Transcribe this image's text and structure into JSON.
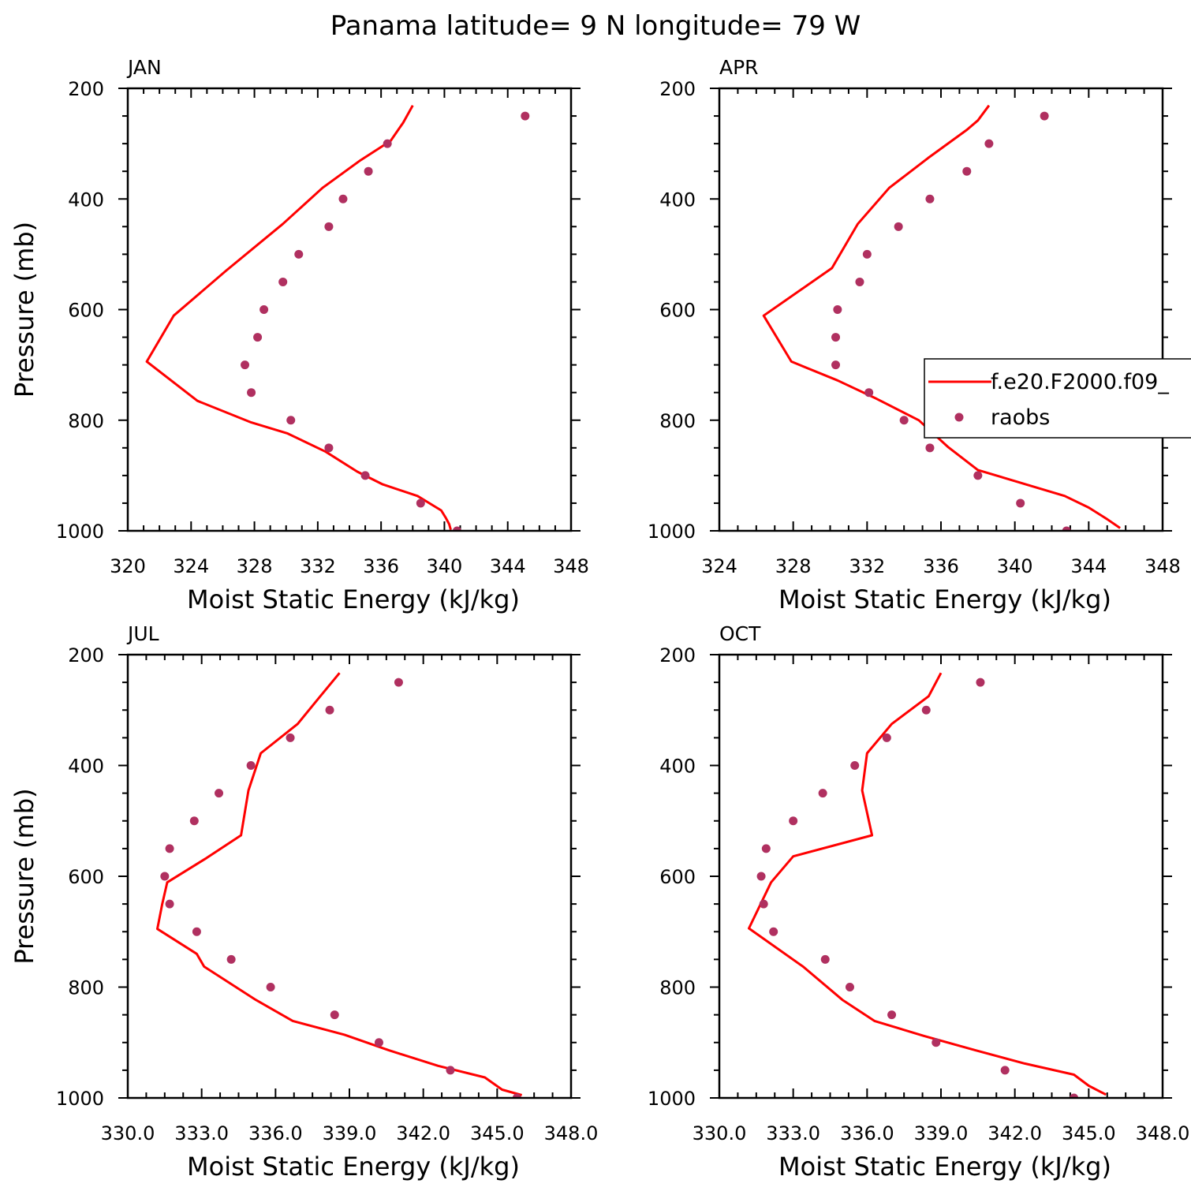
{
  "title": "Panama  latitude= 9 N longitude= 79 W",
  "chart_data": [
    {
      "type": "line",
      "panel_title": "JAN",
      "xlabel": "Moist Static Energy (kJ/kg)",
      "ylabel": "Pressure (mb)",
      "xlim": [
        320,
        348
      ],
      "ylim": [
        1000,
        200
      ],
      "xticks": [
        "320",
        "324",
        "328",
        "332",
        "336",
        "340",
        "344",
        "348"
      ],
      "yticks": [
        "200",
        "400",
        "600",
        "800",
        "1000"
      ],
      "series": [
        {
          "kind": "line",
          "color": "#ff0000",
          "x": [
            338.0,
            337.4,
            336.6,
            334.7,
            332.3,
            329.8,
            326.2,
            322.9,
            321.2,
            324.4,
            327.8,
            330.1,
            332.5,
            334.5,
            336.1,
            338.3,
            339.8,
            340.1,
            340.3,
            340.4
          ],
          "y": [
            231,
            262,
            295,
            330,
            380,
            445,
            530,
            611,
            694,
            765,
            804,
            824,
            857,
            893,
            916,
            937,
            963,
            977,
            988,
            998
          ]
        },
        {
          "kind": "points",
          "color": "#b03060",
          "x": [
            345.1,
            336.4,
            335.2,
            333.6,
            332.7,
            330.8,
            329.8,
            328.6,
            328.2,
            327.4,
            327.8,
            330.3,
            332.7,
            335.0,
            338.5,
            340.8
          ],
          "y": [
            250,
            300,
            350,
            400,
            450,
            500,
            550,
            600,
            650,
            700,
            750,
            800,
            850,
            900,
            950,
            1000
          ]
        }
      ]
    },
    {
      "type": "line",
      "panel_title": "APR",
      "xlabel": "Moist Static Energy (kJ/kg)",
      "ylabel": "",
      "xlim": [
        324,
        348
      ],
      "ylim": [
        1000,
        200
      ],
      "xticks": [
        "324",
        "328",
        "332",
        "336",
        "340",
        "344",
        "348"
      ],
      "yticks": [
        "200",
        "400",
        "600",
        "800",
        "1000"
      ],
      "series": [
        {
          "kind": "line",
          "color": "#ff0000",
          "name": "f.e20.F2000.f09_",
          "x": [
            338.6,
            338.0,
            337.4,
            335.3,
            333.2,
            331.5,
            330.1,
            326.4,
            327.9,
            330.4,
            332.5,
            334.8,
            336.4,
            338.0,
            340.5,
            342.7,
            344.0,
            345.0,
            345.7
          ],
          "y": [
            231,
            258,
            275,
            326,
            380,
            445,
            525,
            611,
            694,
            728,
            761,
            800,
            849,
            890,
            915,
            937,
            958,
            979,
            995
          ]
        },
        {
          "kind": "points",
          "color": "#b03060",
          "name": "raobs",
          "x": [
            341.6,
            338.6,
            337.4,
            335.4,
            333.7,
            332.0,
            331.6,
            330.4,
            330.3,
            330.3,
            332.1,
            334.0,
            335.4,
            338.0,
            340.3,
            342.8
          ],
          "y": [
            250,
            300,
            350,
            400,
            450,
            500,
            550,
            600,
            650,
            700,
            750,
            800,
            850,
            900,
            950,
            1000
          ]
        }
      ]
    },
    {
      "type": "line",
      "panel_title": "JUL",
      "xlabel": "Moist Static Energy (kJ/kg)",
      "ylabel": "Pressure (mb)",
      "xlim": [
        330,
        348
      ],
      "ylim": [
        1000,
        200
      ],
      "xticks": [
        "330.0",
        "333.0",
        "336.0",
        "339.0",
        "342.0",
        "345.0",
        "348.0"
      ],
      "yticks": [
        "200",
        "400",
        "600",
        "800",
        "1000"
      ],
      "series": [
        {
          "kind": "line",
          "color": "#ff0000",
          "x": [
            338.6,
            337.8,
            336.9,
            335.4,
            334.9,
            334.6,
            333.2,
            331.6,
            331.4,
            331.2,
            332.8,
            333.1,
            335.2,
            336.7,
            338.8,
            340.6,
            342.6,
            344.5,
            345.2,
            346.0
          ],
          "y": [
            233,
            276,
            325,
            378,
            445,
            526,
            567,
            611,
            650,
            695,
            740,
            763,
            823,
            861,
            886,
            914,
            942,
            963,
            985,
            995
          ]
        },
        {
          "kind": "points",
          "color": "#b03060",
          "x": [
            341.0,
            338.2,
            336.6,
            335.0,
            333.7,
            332.7,
            331.7,
            331.5,
            331.7,
            332.8,
            334.2,
            335.8,
            338.4,
            340.2,
            343.1,
            345.8
          ],
          "y": [
            250,
            300,
            350,
            400,
            450,
            500,
            550,
            600,
            650,
            700,
            750,
            800,
            850,
            900,
            950,
            1000
          ]
        }
      ]
    },
    {
      "type": "line",
      "panel_title": "OCT",
      "xlabel": "Moist Static Energy (kJ/kg)",
      "ylabel": "",
      "xlim": [
        330,
        348
      ],
      "ylim": [
        1000,
        200
      ],
      "xticks": [
        "330.0",
        "333.0",
        "336.0",
        "339.0",
        "342.0",
        "345.0",
        "348.0"
      ],
      "yticks": [
        "200",
        "400",
        "600",
        "800",
        "1000"
      ],
      "series": [
        {
          "kind": "line",
          "color": "#ff0000",
          "x": [
            339.0,
            338.5,
            337.0,
            336.0,
            335.8,
            336.2,
            333.0,
            332.1,
            331.2,
            333.4,
            335.0,
            336.3,
            338.3,
            340.4,
            342.4,
            344.4,
            345.0,
            345.7
          ],
          "y": [
            233,
            275,
            325,
            378,
            445,
            526,
            564,
            611,
            694,
            763,
            823,
            861,
            888,
            914,
            938,
            958,
            978,
            994
          ]
        },
        {
          "kind": "points",
          "color": "#b03060",
          "x": [
            340.6,
            338.4,
            336.8,
            335.5,
            334.2,
            333.0,
            331.9,
            331.7,
            331.8,
            332.2,
            334.3,
            335.3,
            337.0,
            338.8,
            341.6,
            344.4
          ],
          "y": [
            250,
            300,
            350,
            400,
            450,
            500,
            550,
            600,
            650,
            700,
            750,
            800,
            850,
            900,
            950,
            1000
          ]
        }
      ]
    }
  ]
}
